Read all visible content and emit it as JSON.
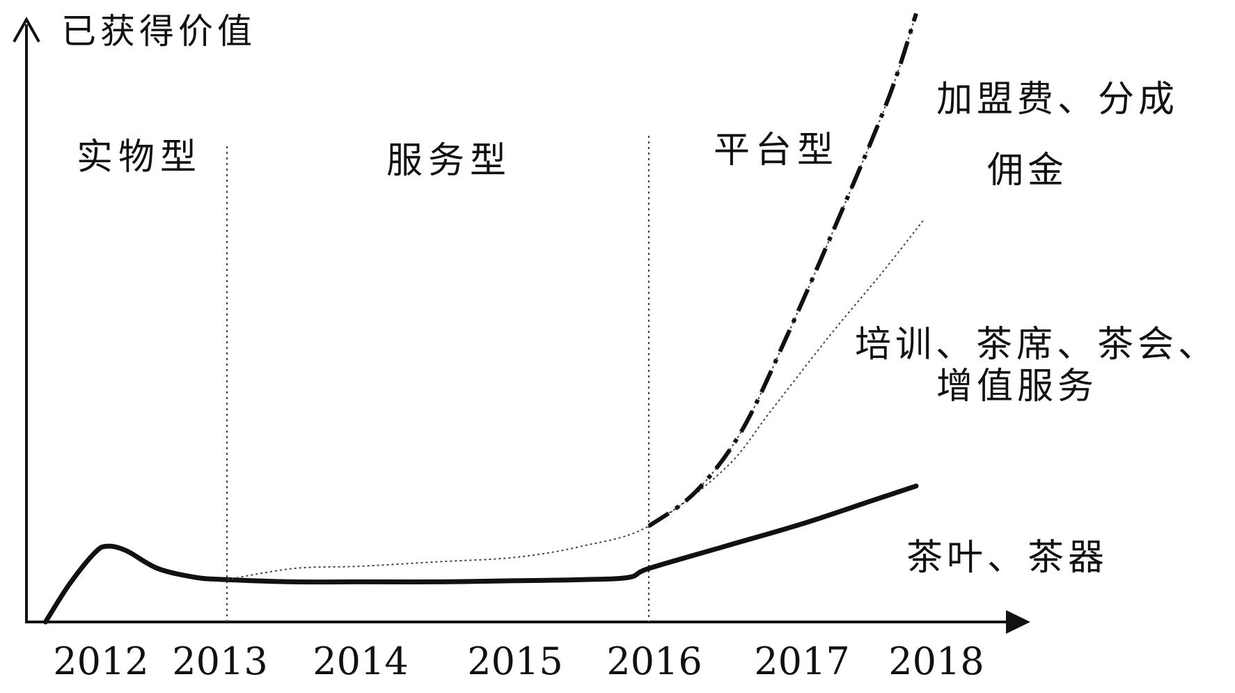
{
  "chart_data": {
    "type": "line",
    "ylabel": "已获得价值",
    "xlabel": "",
    "x_ticks": [
      "2012",
      "2013",
      "2014",
      "2015",
      "2016",
      "2017",
      "2018"
    ],
    "grid": false,
    "legend": "none",
    "phases": [
      {
        "label": "实物型",
        "from": "2012",
        "to": "2013"
      },
      {
        "label": "服务型",
        "from": "2013",
        "to": "2016"
      },
      {
        "label": "平台型",
        "from": "2016",
        "to": "2018"
      }
    ],
    "phase_boundaries": [
      "2013",
      "2016"
    ],
    "series": [
      {
        "label_lines": [
          "茶叶、茶器"
        ],
        "style": "thick-solid",
        "points": [
          [
            2011.56,
            0
          ],
          [
            2011.75,
            0.17
          ],
          [
            2011.95,
            0.31
          ],
          [
            2012.05,
            0.34
          ],
          [
            2012.2,
            0.32
          ],
          [
            2012.45,
            0.24
          ],
          [
            2012.75,
            0.2
          ],
          [
            2013.0,
            0.19
          ],
          [
            2013.5,
            0.18
          ],
          [
            2014.0,
            0.18
          ],
          [
            2014.5,
            0.18
          ],
          [
            2015.0,
            0.185
          ],
          [
            2015.5,
            0.19
          ],
          [
            2015.85,
            0.2
          ],
          [
            2016.0,
            0.24
          ],
          [
            2016.5,
            0.34
          ],
          [
            2017.0,
            0.44
          ],
          [
            2017.5,
            0.54
          ],
          [
            2017.85,
            0.61
          ]
        ]
      },
      {
        "label_lines": [
          "培训、茶席、茶会、",
          "增值服务"
        ],
        "style": "thin-dotted",
        "points": [
          [
            2013.0,
            0.19
          ],
          [
            2013.5,
            0.24
          ],
          [
            2014.0,
            0.25
          ],
          [
            2014.5,
            0.27
          ],
          [
            2015.0,
            0.29
          ],
          [
            2015.5,
            0.34
          ],
          [
            2016.0,
            0.43
          ],
          [
            2016.5,
            0.69
          ],
          [
            2016.8,
            0.95
          ],
          [
            2017.2,
            1.28
          ],
          [
            2017.6,
            1.57
          ],
          [
            2017.9,
            1.8
          ]
        ]
      },
      {
        "label_lines": [
          "佣金"
        ],
        "style": "thin-dotted",
        "points": [
          [
            2016.0,
            0.43
          ],
          [
            2016.3,
            0.58
          ],
          [
            2016.6,
            0.85
          ],
          [
            2016.9,
            1.28
          ],
          [
            2017.3,
            1.85
          ],
          [
            2017.65,
            2.36
          ],
          [
            2017.85,
            2.73
          ]
        ]
      },
      {
        "label_lines": [
          "加盟费、分成"
        ],
        "style": "thick-dash-dot",
        "points": [
          [
            2016.0,
            0.43
          ],
          [
            2016.3,
            0.58
          ],
          [
            2016.6,
            0.85
          ],
          [
            2016.9,
            1.28
          ],
          [
            2017.3,
            1.85
          ],
          [
            2017.65,
            2.36
          ],
          [
            2017.85,
            2.73
          ]
        ]
      }
    ]
  }
}
